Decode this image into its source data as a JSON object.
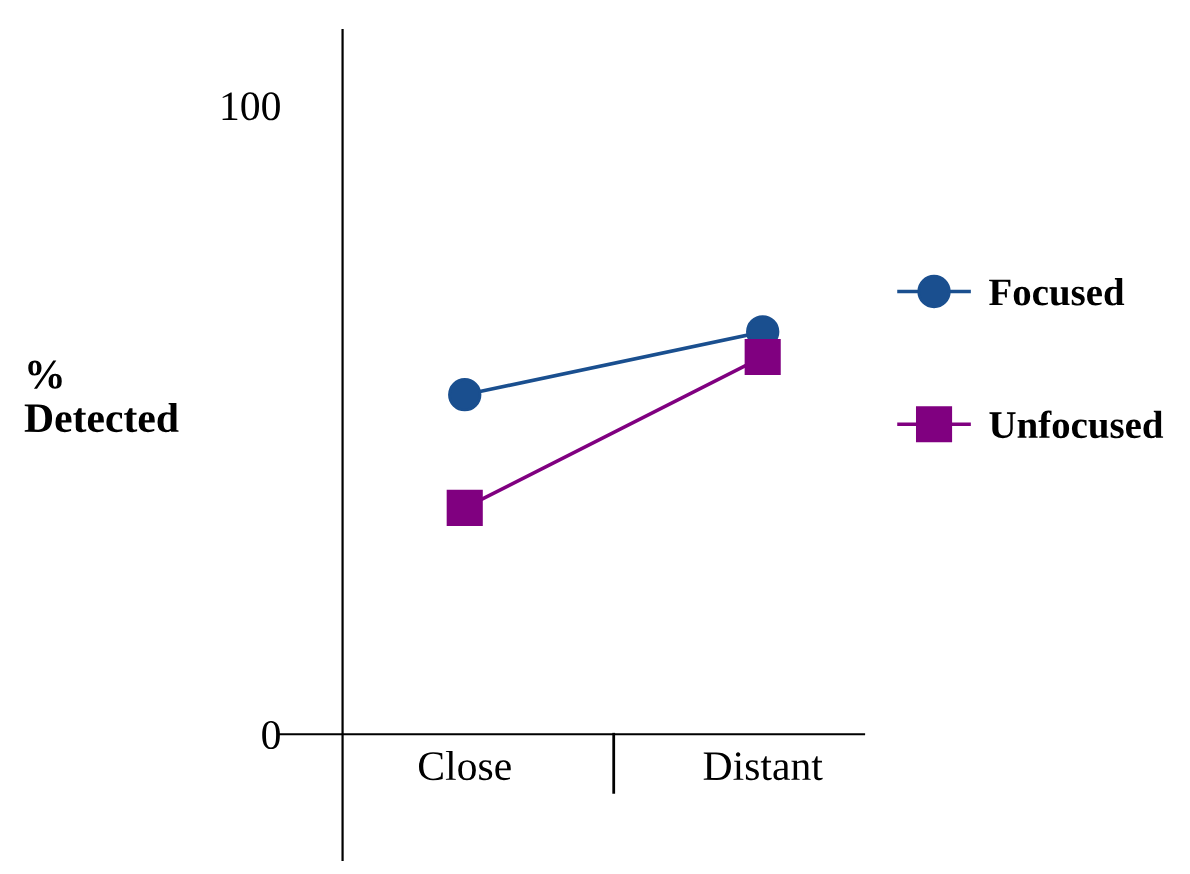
{
  "chart_data": {
    "type": "line",
    "ylabel": "%\nDetected",
    "categories": [
      "Close",
      "Distant"
    ],
    "series": [
      {
        "name": "Focused",
        "color": "#1a4f8f",
        "marker": "circle",
        "values": [
          54,
          64
        ]
      },
      {
        "name": "Unfocused",
        "color": "#800080",
        "marker": "square",
        "values": [
          36,
          60
        ]
      }
    ],
    "ylim": [
      -20,
      112
    ],
    "yticks": [
      0,
      100
    ],
    "grid": false,
    "legend": "right",
    "line_style": "solid"
  }
}
